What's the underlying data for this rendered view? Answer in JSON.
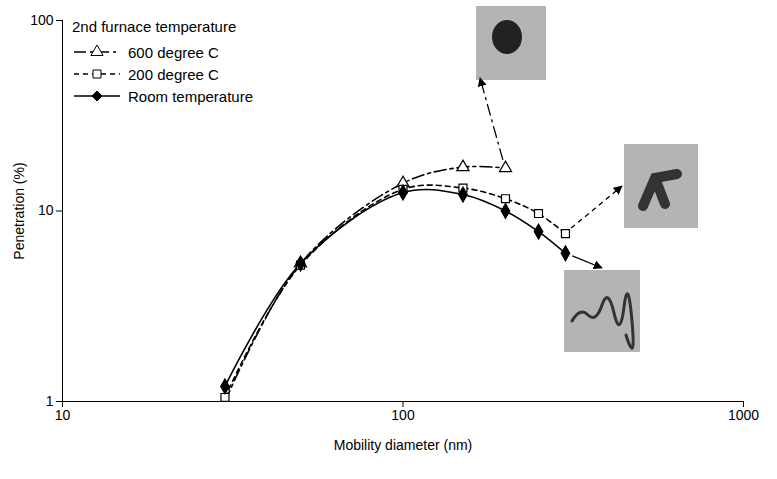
{
  "chart_data": {
    "type": "line",
    "x_label": "Mobility diameter (nm)",
    "y_label": "Penetration (%)",
    "legend_title": "2nd furnace temperature",
    "legend": "upper left",
    "log": true,
    "grid": false,
    "xlim": [
      10,
      1000
    ],
    "xticks": [
      10,
      100,
      1000
    ],
    "ylim": [
      1,
      100
    ],
    "yticks": [
      1,
      10,
      100
    ],
    "x": [
      30,
      50,
      100,
      150,
      200,
      250,
      300
    ],
    "series": [
      {
        "name": "600 degree C",
        "color": "#000000",
        "marker": "triangle-open",
        "line_style": "dashdot",
        "values": [
          1.0,
          5.3,
          14.0,
          17.0,
          16.8,
          null,
          null
        ]
      },
      {
        "name": "200 degree C",
        "color": "#000000",
        "marker": "square-open",
        "line_style": "dashed",
        "values": [
          1.05,
          5.2,
          13.0,
          13.2,
          11.6,
          9.7,
          7.6
        ]
      },
      {
        "name": "Room temperature",
        "color": "#000000",
        "marker": "diamond",
        "line_style": "solid",
        "values": [
          1.2,
          5.3,
          12.5,
          12.2,
          10.0,
          7.8,
          6.0
        ]
      }
    ]
  }
}
